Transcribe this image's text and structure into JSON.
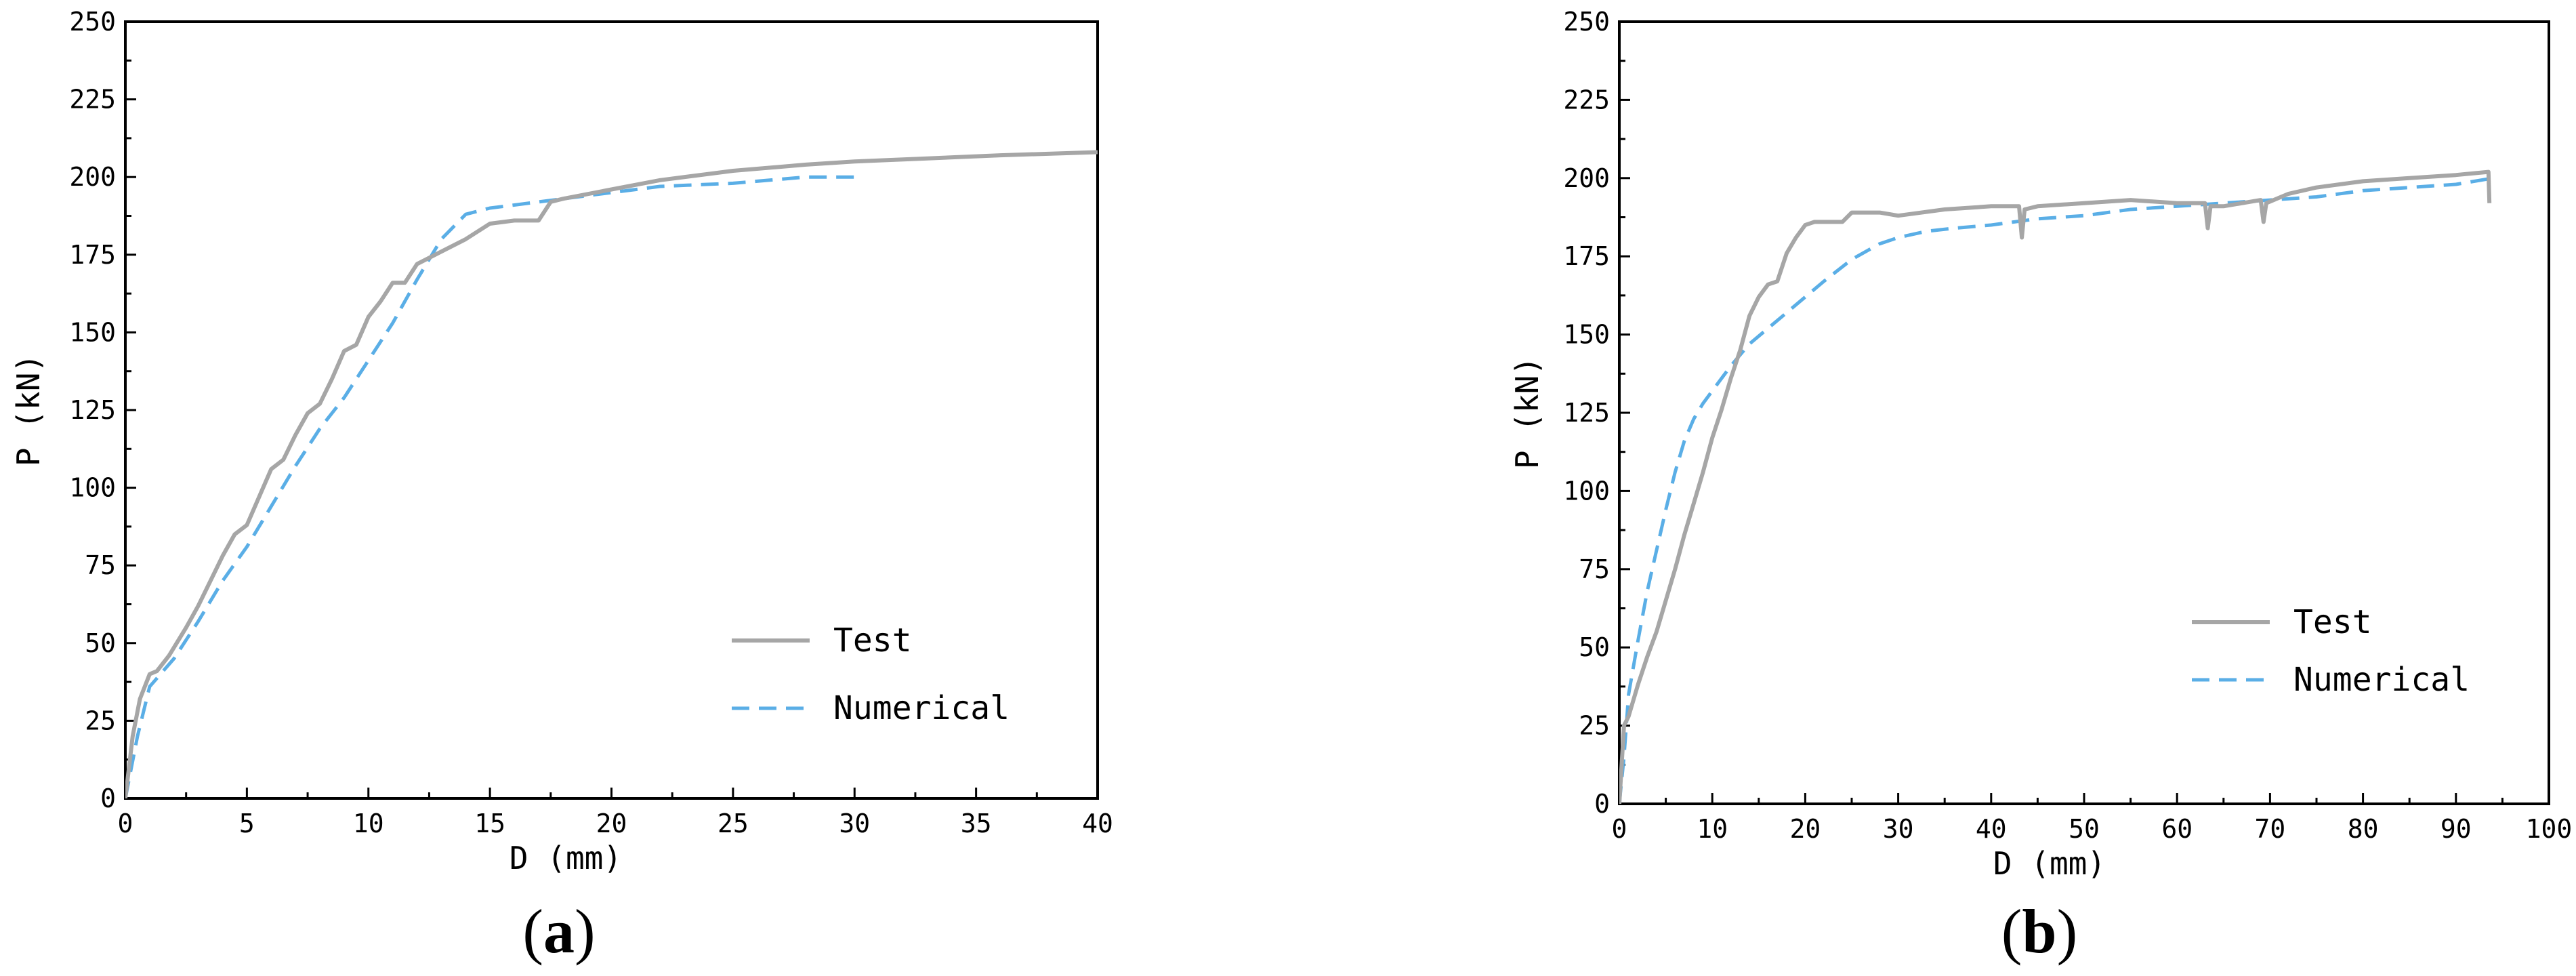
{
  "chart_data": [
    {
      "type": "line",
      "panel_label": {
        "open": "(",
        "letter": "a",
        "close": ")"
      },
      "title": "",
      "xlabel": "D (mm)",
      "ylabel": "P (kN)",
      "xlim": [
        0,
        40
      ],
      "ylim": [
        0,
        250
      ],
      "xticks": [
        "0",
        "5",
        "10",
        "15",
        "20",
        "25",
        "30",
        "35",
        "40"
      ],
      "yticks": [
        "0",
        "25",
        "50",
        "75",
        "100",
        "125",
        "150",
        "175",
        "200",
        "225",
        "250"
      ],
      "grid": false,
      "legend_position": "bottom-right",
      "series": [
        {
          "name": "Test",
          "color": "#a6a6a6",
          "style": "solid",
          "x": [
            0,
            0.3,
            0.6,
            1.0,
            1.3,
            1.8,
            2.5,
            3.0,
            3.5,
            4.0,
            4.5,
            5.0,
            5.5,
            6.0,
            6.5,
            7.0,
            7.5,
            8.0,
            8.5,
            9.0,
            9.5,
            10.0,
            10.5,
            11.0,
            11.5,
            12.0,
            12.5,
            13.0,
            14.0,
            15.0,
            16.0,
            17.0,
            17.5,
            18.0,
            20.0,
            22.0,
            25.0,
            28.0,
            30.0,
            33.0,
            36.0,
            40.0
          ],
          "y": [
            0,
            20,
            32,
            40,
            41,
            46,
            55,
            62,
            70,
            78,
            85,
            88,
            97,
            106,
            109,
            117,
            124,
            127,
            135,
            144,
            146,
            155,
            160,
            166,
            166,
            172,
            174,
            176,
            180,
            185,
            186,
            186,
            192,
            193,
            196,
            199,
            202,
            204,
            205,
            206,
            207,
            208
          ]
        },
        {
          "name": "Numerical",
          "color": "#5aaee6",
          "style": "dashed",
          "x": [
            0,
            0.5,
            1.0,
            2.0,
            3.0,
            4.0,
            5.0,
            6.0,
            7.0,
            8.0,
            9.0,
            10.0,
            11.0,
            12.0,
            13.0,
            14.0,
            15.0,
            16.0,
            18.0,
            20.0,
            22.0,
            25.0,
            28.0,
            30.0
          ],
          "y": [
            0,
            20,
            36,
            45,
            57,
            70,
            81,
            94,
            107,
            119,
            129,
            141,
            153,
            167,
            180,
            188,
            190,
            191,
            193,
            195,
            197,
            198,
            200,
            200
          ]
        }
      ]
    },
    {
      "type": "line",
      "panel_label": {
        "open": "(",
        "letter": "b",
        "close": ")"
      },
      "title": "",
      "xlabel": "D (mm)",
      "ylabel": "P (kN)",
      "xlim": [
        0,
        100
      ],
      "ylim": [
        0,
        250
      ],
      "xticks": [
        "0",
        "10",
        "20",
        "30",
        "40",
        "50",
        "60",
        "70",
        "80",
        "90",
        "100"
      ],
      "yticks": [
        "0",
        "25",
        "50",
        "75",
        "100",
        "125",
        "150",
        "175",
        "200",
        "225",
        "250"
      ],
      "grid": false,
      "legend_position": "bottom-right",
      "series": [
        {
          "name": "Test",
          "color": "#a6a6a6",
          "style": "solid",
          "x": [
            0,
            0.5,
            1.0,
            2.0,
            3.0,
            4.0,
            5.0,
            6.0,
            7.0,
            8.0,
            9.0,
            10.0,
            11.0,
            12.0,
            13.0,
            14.0,
            15.0,
            16.0,
            17.0,
            18.0,
            19.0,
            20.0,
            21.0,
            24.0,
            25.0,
            28.0,
            30.0,
            35.0,
            40.0,
            43.0,
            43.3,
            43.6,
            45.0,
            50.0,
            55.0,
            60.0,
            63.0,
            63.3,
            63.6,
            65.0,
            69.0,
            69.3,
            69.6,
            72.0,
            75.0,
            80.0,
            85.0,
            90.0,
            93.5,
            93.6
          ],
          "y": [
            0,
            25,
            28,
            38,
            47,
            55,
            65,
            75,
            86,
            96,
            106,
            117,
            126,
            136,
            145,
            156,
            162,
            166,
            167,
            176,
            181,
            185,
            186,
            186,
            189,
            189,
            188,
            190,
            191,
            191,
            181,
            190,
            191,
            192,
            193,
            192,
            192,
            184,
            191,
            191,
            193,
            186,
            192,
            195,
            197,
            199,
            200,
            201,
            202,
            192
          ]
        },
        {
          "name": "Numerical",
          "color": "#5aaee6",
          "style": "dashed",
          "x": [
            0,
            0.5,
            1.0,
            2.0,
            3.0,
            4.0,
            5.0,
            6.0,
            7.0,
            8.0,
            9.0,
            10.0,
            12.0,
            14.0,
            16.0,
            18.0,
            20.0,
            22.0,
            25.0,
            28.0,
            30.0,
            33.0,
            36.0,
            40.0,
            45.0,
            50.0,
            55.0,
            60.0,
            65.0,
            70.0,
            75.0,
            80.0,
            85.0,
            90.0,
            94.0
          ],
          "y": [
            0,
            15,
            35,
            52,
            68,
            81,
            94,
            106,
            116,
            123,
            128,
            132,
            140,
            147,
            152,
            157,
            162,
            167,
            174,
            179,
            181,
            183,
            184,
            185,
            187,
            188,
            190,
            191,
            192,
            193,
            194,
            196,
            197,
            198,
            200
          ]
        }
      ]
    }
  ]
}
